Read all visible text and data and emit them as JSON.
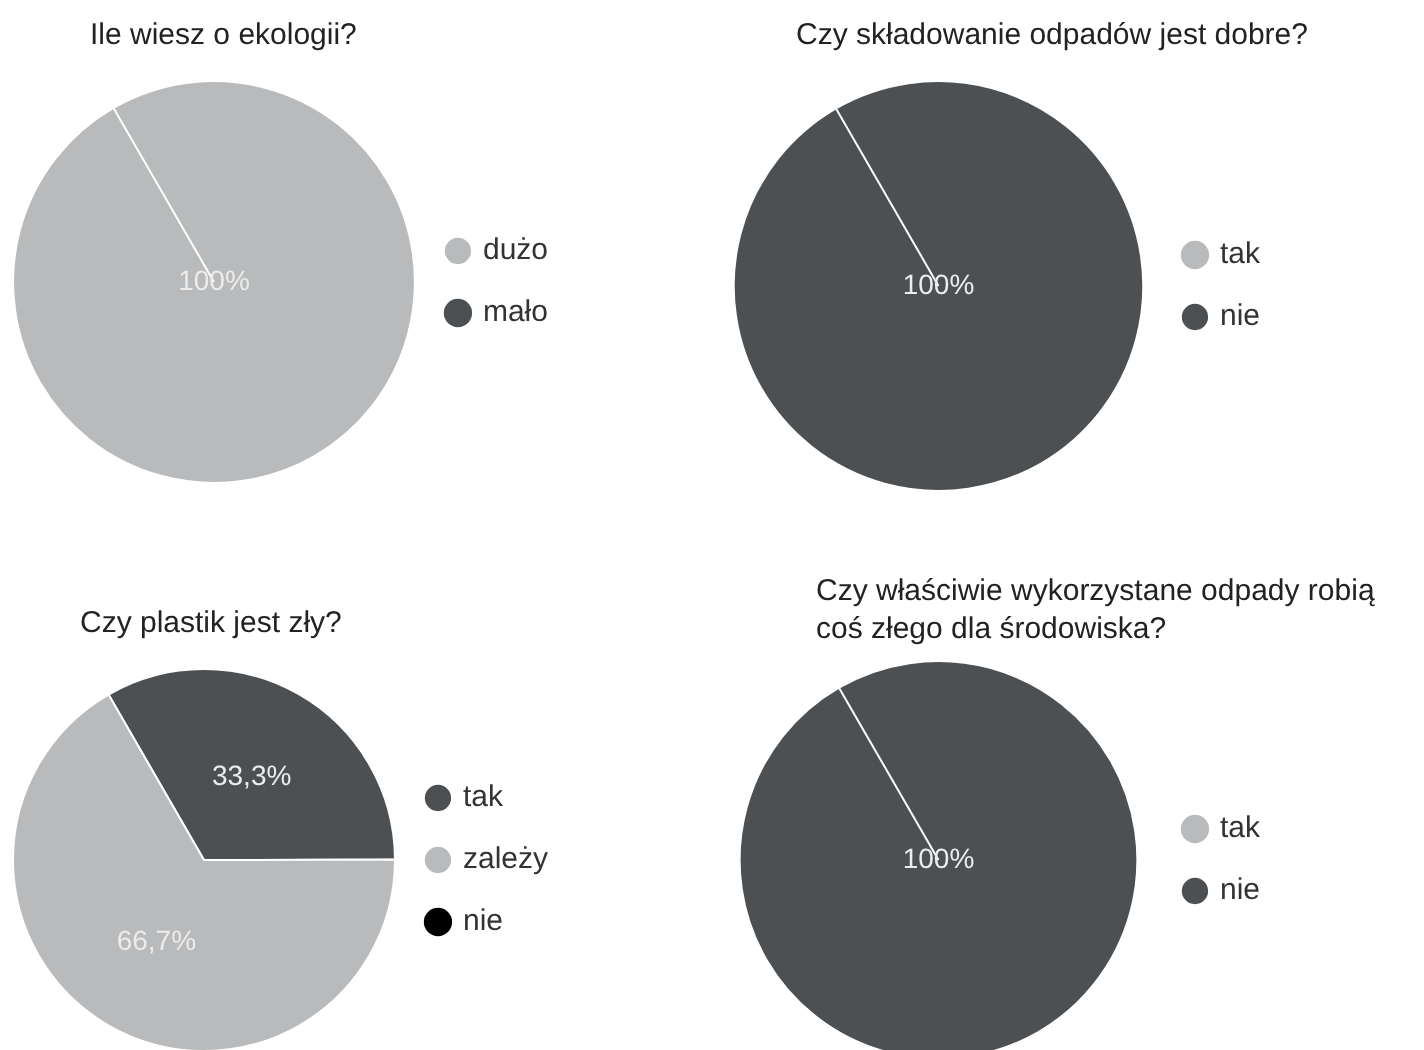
{
  "chart_data": [
    {
      "type": "pie",
      "title": "Ile wiesz o ekologii?",
      "categories": [
        "dużo",
        "mało"
      ],
      "values": [
        100,
        0
      ],
      "colors": [
        "#b8babb",
        "#4d5052"
      ],
      "value_labels": [
        "100%",
        null
      ],
      "legend": "right"
    },
    {
      "type": "pie",
      "title": "Czy składowanie odpadów jest dobre?",
      "categories": [
        "tak",
        "nie"
      ],
      "values": [
        0,
        100
      ],
      "colors": [
        "#b8babb",
        "#4d5052"
      ],
      "value_labels": [
        null,
        "100%"
      ],
      "legend": "right"
    },
    {
      "type": "pie",
      "title": "Czy plastik jest zły?",
      "categories": [
        "tak",
        "zależy",
        "nie"
      ],
      "values": [
        33.3,
        66.7,
        0
      ],
      "colors": [
        "#4d5052",
        "#b8babb",
        "#000000"
      ],
      "value_labels": [
        "33,3%",
        "66,7%",
        null
      ],
      "legend": "right"
    },
    {
      "type": "pie",
      "title": "Czy właściwie wykorzystane odpady robią coś złego dla środowiska?",
      "categories": [
        "tak",
        "nie"
      ],
      "values": [
        0,
        100
      ],
      "colors": [
        "#b8babb",
        "#4d5052"
      ],
      "value_labels": [
        null,
        "100%"
      ],
      "legend": "right"
    }
  ]
}
